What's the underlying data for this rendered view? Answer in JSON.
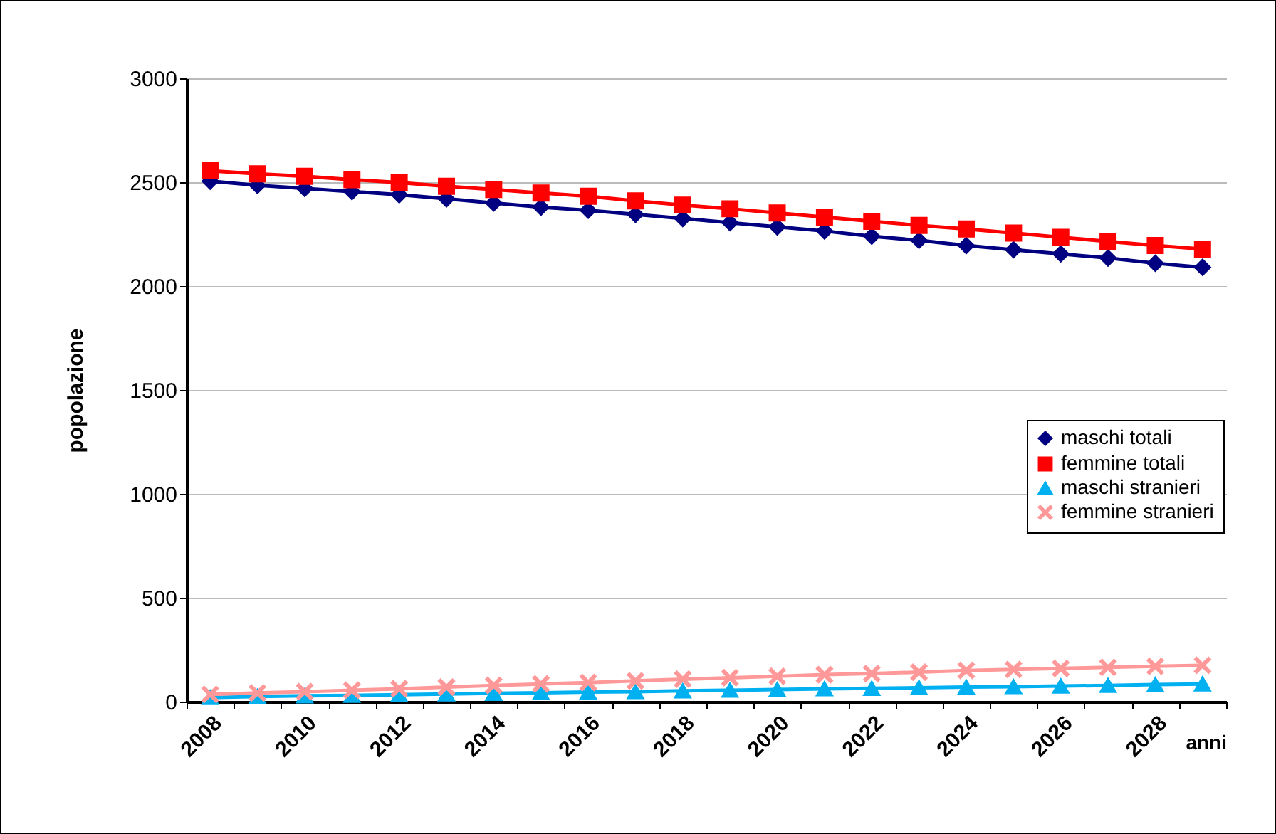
{
  "chart_data": {
    "type": "line",
    "xlabel": "anni",
    "ylabel": "popolazione",
    "categories": [
      "2008",
      null,
      "2010",
      null,
      "2012",
      null,
      "2014",
      null,
      "2016",
      null,
      "2018",
      null,
      "2020",
      null,
      "2022",
      null,
      "2024",
      null,
      "2026",
      null,
      "2028",
      null
    ],
    "series": [
      {
        "name": "maschi totali",
        "color": "#000080",
        "marker": "diamond",
        "values": [
          2505,
          2485,
          2470,
          2455,
          2440,
          2420,
          2400,
          2380,
          2365,
          2345,
          2325,
          2305,
          2285,
          2265,
          2240,
          2220,
          2195,
          2175,
          2155,
          2135,
          2110,
          2090
        ]
      },
      {
        "name": "femmine totali",
        "color": "#ff0000",
        "marker": "square",
        "values": [
          2555,
          2540,
          2528,
          2512,
          2498,
          2480,
          2465,
          2448,
          2432,
          2410,
          2390,
          2372,
          2352,
          2332,
          2312,
          2292,
          2275,
          2255,
          2235,
          2215,
          2195,
          2178
        ]
      },
      {
        "name": "maschi stranieri",
        "color": "#00b0f0",
        "marker": "triangle",
        "values": [
          20,
          25,
          28,
          30,
          33,
          37,
          40,
          43,
          46,
          48,
          52,
          55,
          58,
          62,
          64,
          67,
          70,
          72,
          75,
          78,
          82,
          85
        ]
      },
      {
        "name": "femmine stranieri",
        "color": "#ff9999",
        "marker": "cross",
        "values": [
          35,
          42,
          48,
          55,
          62,
          70,
          78,
          85,
          92,
          100,
          108,
          115,
          122,
          130,
          135,
          142,
          150,
          155,
          160,
          165,
          170,
          175
        ]
      }
    ],
    "ylim": [
      0,
      3000
    ],
    "yticks": [
      0,
      500,
      1000,
      1500,
      2000,
      2500,
      3000
    ],
    "grid": "y",
    "legend": "right",
    "line_style": "solid"
  }
}
